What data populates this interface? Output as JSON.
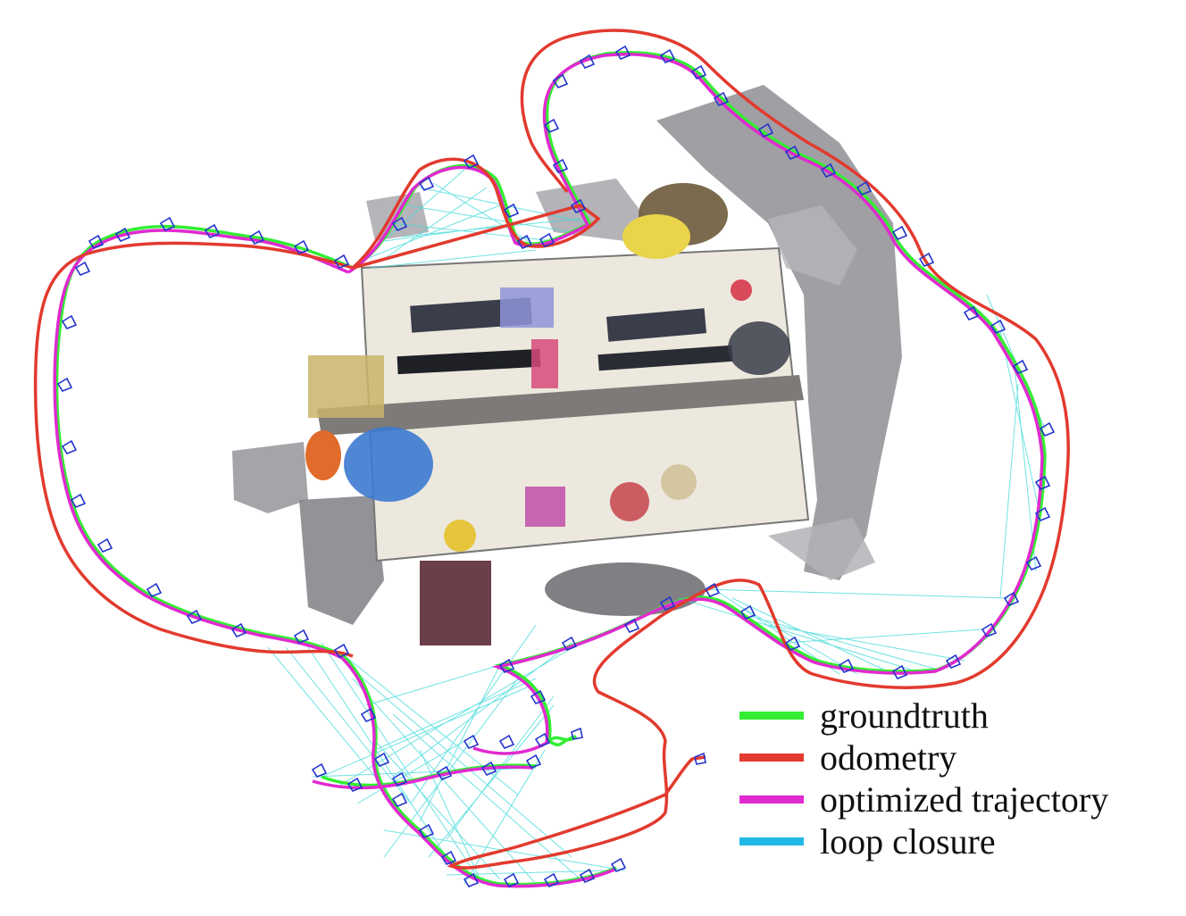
{
  "legend": {
    "items": [
      {
        "label": "groundtruth",
        "color": "#33ee33"
      },
      {
        "label": "odometry",
        "color": "#e23a2e"
      },
      {
        "label": "optimized trajectory",
        "color": "#e02ad0"
      },
      {
        "label": "loop closure",
        "color": "#22b8e6"
      }
    ]
  },
  "colors": {
    "loop_closure_lines": "#3fd8d8",
    "camera_frustum": "#2233cc",
    "cloud_gray": "#9c9aa0"
  },
  "icons": {
    "camera": "camera-frustum-icon"
  }
}
